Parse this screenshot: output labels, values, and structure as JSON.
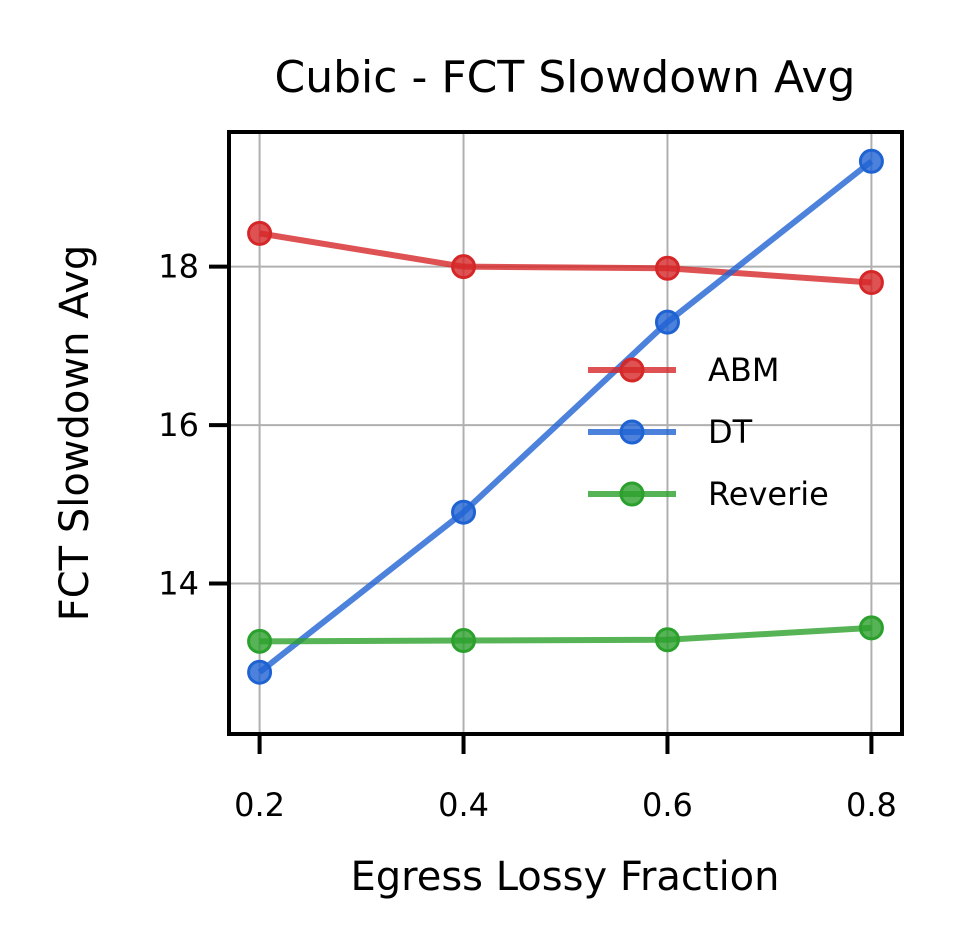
{
  "chart_data": {
    "type": "line",
    "title": "Cubic - FCT Slowdown Avg",
    "xlabel": "Egress Lossy Fraction",
    "ylabel": "FCT Slowdown Avg",
    "x": [
      0.2,
      0.4,
      0.6,
      0.8
    ],
    "x_tick_labels": [
      "0.2",
      "0.4",
      "0.6",
      "0.8"
    ],
    "y_ticks": [
      14,
      16,
      18
    ],
    "y_tick_labels": [
      "14",
      "16",
      "18"
    ],
    "xlim": [
      0.17,
      0.83
    ],
    "ylim": [
      12.1,
      19.7
    ],
    "grid": true,
    "legend_position": "center-right",
    "series": [
      {
        "name": "ABM",
        "color": "#d62728",
        "values": [
          18.42,
          18.0,
          17.98,
          17.8
        ]
      },
      {
        "name": "DT",
        "color": "#1f63d3",
        "values": [
          12.88,
          14.9,
          17.3,
          19.33
        ]
      },
      {
        "name": "Reverie",
        "color": "#2ca02c",
        "values": [
          13.27,
          13.28,
          13.29,
          13.44
        ]
      }
    ]
  }
}
